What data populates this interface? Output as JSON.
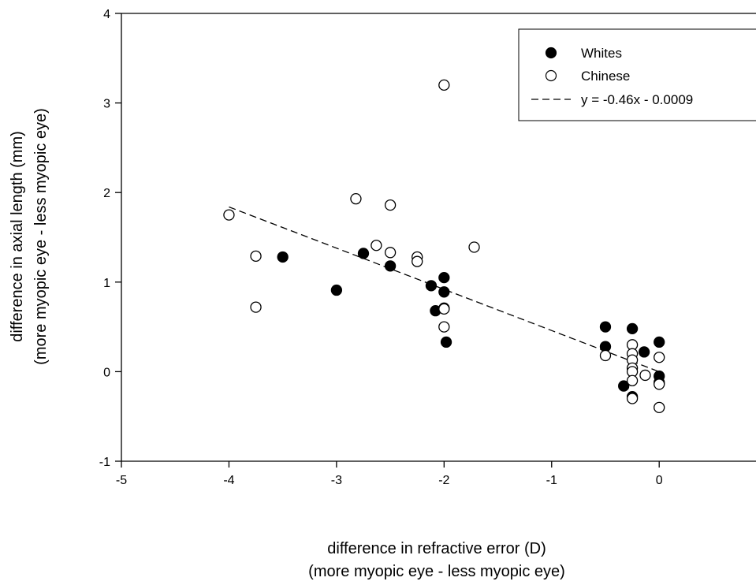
{
  "chart_data": {
    "type": "scatter",
    "xlabel": "difference in refractive error (D)",
    "xlabel_sub": "(more myopic eye - less myopic eye)",
    "ylabel": "difference in axial length (mm)",
    "ylabel_sub": "(more myopic eye - less myopic eye)",
    "xlim": [
      -5,
      0.9
    ],
    "ylim": [
      -1,
      4
    ],
    "x_ticks": [
      -5,
      -4,
      -3,
      -2,
      -1,
      0
    ],
    "y_ticks": [
      -1,
      0,
      1,
      2,
      3,
      4
    ],
    "grid": false,
    "legend_position": "top-right",
    "series": [
      {
        "name": "Whites",
        "marker": "filled-circle",
        "color": "#000000",
        "points": [
          [
            -3.5,
            1.28
          ],
          [
            -3.0,
            0.91
          ],
          [
            -2.75,
            1.32
          ],
          [
            -2.5,
            1.18
          ],
          [
            -2.12,
            0.96
          ],
          [
            -2.08,
            0.68
          ],
          [
            -2.0,
            1.05
          ],
          [
            -2.0,
            0.89
          ],
          [
            -1.98,
            0.33
          ],
          [
            -0.5,
            0.5
          ],
          [
            -0.5,
            0.28
          ],
          [
            -0.25,
            0.48
          ],
          [
            -0.14,
            0.22
          ],
          [
            -0.33,
            -0.16
          ],
          [
            -0.25,
            -0.28
          ],
          [
            0.0,
            0.33
          ],
          [
            0.0,
            -0.05
          ],
          [
            0.0,
            -0.12
          ]
        ]
      },
      {
        "name": "Chinese",
        "marker": "open-circle",
        "color": "#000000",
        "points": [
          [
            -4.0,
            1.75
          ],
          [
            -3.75,
            1.29
          ],
          [
            -3.75,
            0.72
          ],
          [
            -2.82,
            1.93
          ],
          [
            -2.63,
            1.41
          ],
          [
            -2.5,
            1.86
          ],
          [
            -2.5,
            1.33
          ],
          [
            -2.25,
            1.28
          ],
          [
            -2.25,
            1.23
          ],
          [
            -2.0,
            3.2
          ],
          [
            -2.0,
            0.71
          ],
          [
            -2.0,
            0.7
          ],
          [
            -2.0,
            0.5
          ],
          [
            -1.72,
            1.39
          ],
          [
            -0.5,
            0.18
          ],
          [
            -0.25,
            0.3
          ],
          [
            -0.25,
            0.2
          ],
          [
            -0.25,
            0.13
          ],
          [
            -0.25,
            0.04
          ],
          [
            -0.25,
            0.0
          ],
          [
            -0.25,
            -0.1
          ],
          [
            -0.25,
            -0.3
          ],
          [
            -0.13,
            -0.04
          ],
          [
            0.0,
            0.16
          ],
          [
            0.0,
            -0.14
          ],
          [
            0.0,
            -0.4
          ]
        ]
      }
    ],
    "fit_line": {
      "label": "y = -0.46x - 0.0009",
      "slope": -0.46,
      "intercept": -0.0009,
      "x_range": [
        -4.0,
        0.0
      ],
      "style": "dashed"
    }
  }
}
